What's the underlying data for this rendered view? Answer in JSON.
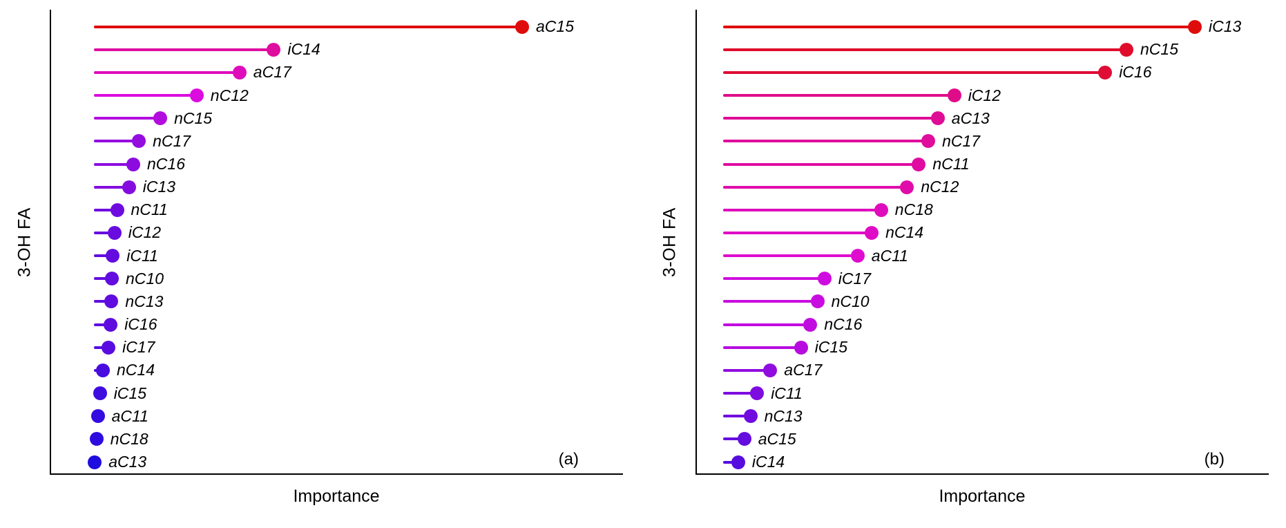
{
  "figure": {
    "background": "#ffffff",
    "colormap": "blue (low importance) through magenta to red (high importance)",
    "color_low": "#1a1acc",
    "color_high": "#ee1111"
  },
  "chart_data": [
    {
      "type": "lollipop",
      "panel_label": "(a)",
      "xlabel": "Importance",
      "ylabel": "3-OH FA",
      "value_scale": "relative importance, normalized to max = 1 (no numeric ticks shown)",
      "items": [
        {
          "label": "aC15",
          "value": 1.0
        },
        {
          "label": "iC14",
          "value": 0.42
        },
        {
          "label": "aC17",
          "value": 0.34
        },
        {
          "label": "nC12",
          "value": 0.24
        },
        {
          "label": "nC15",
          "value": 0.155
        },
        {
          "label": "nC17",
          "value": 0.105
        },
        {
          "label": "nC16",
          "value": 0.092
        },
        {
          "label": "iC13",
          "value": 0.082
        },
        {
          "label": "nC11",
          "value": 0.054
        },
        {
          "label": "iC12",
          "value": 0.048
        },
        {
          "label": "iC11",
          "value": 0.044
        },
        {
          "label": "nC10",
          "value": 0.042
        },
        {
          "label": "nC13",
          "value": 0.041
        },
        {
          "label": "iC16",
          "value": 0.039
        },
        {
          "label": "iC17",
          "value": 0.034
        },
        {
          "label": "nC14",
          "value": 0.021
        },
        {
          "label": "iC15",
          "value": 0.014
        },
        {
          "label": "aC11",
          "value": 0.009
        },
        {
          "label": "nC18",
          "value": 0.006
        },
        {
          "label": "aC13",
          "value": 0.002
        }
      ]
    },
    {
      "type": "lollipop",
      "panel_label": "(b)",
      "xlabel": "Importance",
      "ylabel": "3-OH FA",
      "value_scale": "relative importance, normalized to max = 1 (no numeric ticks shown)",
      "items": [
        {
          "label": "iC13",
          "value": 1.0
        },
        {
          "label": "nC15",
          "value": 0.855
        },
        {
          "label": "iC16",
          "value": 0.81
        },
        {
          "label": "iC12",
          "value": 0.49
        },
        {
          "label": "aC13",
          "value": 0.455
        },
        {
          "label": "nC17",
          "value": 0.435
        },
        {
          "label": "nC11",
          "value": 0.415
        },
        {
          "label": "nC12",
          "value": 0.39
        },
        {
          "label": "nC18",
          "value": 0.335
        },
        {
          "label": "nC14",
          "value": 0.315
        },
        {
          "label": "aC11",
          "value": 0.285
        },
        {
          "label": "iC17",
          "value": 0.215
        },
        {
          "label": "nC10",
          "value": 0.2
        },
        {
          "label": "nC16",
          "value": 0.185
        },
        {
          "label": "iC15",
          "value": 0.165
        },
        {
          "label": "aC17",
          "value": 0.1
        },
        {
          "label": "iC11",
          "value": 0.072
        },
        {
          "label": "nC13",
          "value": 0.058
        },
        {
          "label": "aC15",
          "value": 0.045
        },
        {
          "label": "iC14",
          "value": 0.032
        }
      ]
    }
  ]
}
